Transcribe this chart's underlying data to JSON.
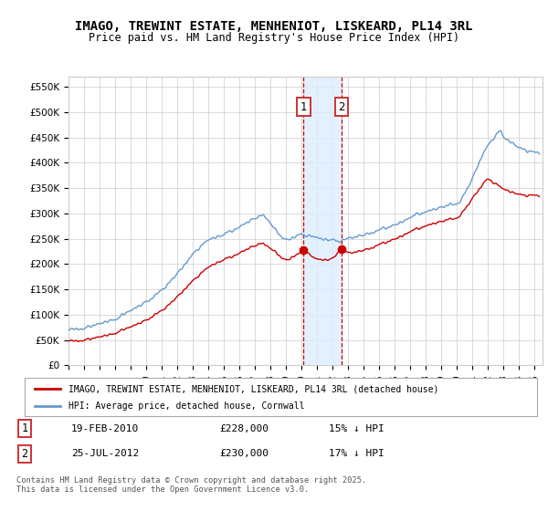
{
  "title": "IMAGO, TREWINT ESTATE, MENHENIOT, LISKEARD, PL14 3RL",
  "subtitle": "Price paid vs. HM Land Registry's House Price Index (HPI)",
  "legend_label_red": "IMAGO, TREWINT ESTATE, MENHENIOT, LISKEARD, PL14 3RL (detached house)",
  "legend_label_blue": "HPI: Average price, detached house, Cornwall",
  "annotation1_date": "19-FEB-2010",
  "annotation1_price": "£228,000",
  "annotation1_hpi": "15% ↓ HPI",
  "annotation2_date": "25-JUL-2012",
  "annotation2_price": "£230,000",
  "annotation2_hpi": "17% ↓ HPI",
  "footer": "Contains HM Land Registry data © Crown copyright and database right 2025.\nThis data is licensed under the Open Government Licence v3.0.",
  "red_color": "#cc0000",
  "blue_color": "#6699cc",
  "shading_color": "#ddeeff",
  "vline_color": "#cc0000",
  "grid_color": "#cccccc",
  "bg_color": "#ffffff",
  "ylim": [
    0,
    570000
  ],
  "yticks": [
    0,
    50000,
    100000,
    150000,
    200000,
    250000,
    300000,
    350000,
    400000,
    450000,
    500000,
    550000
  ],
  "sale1_year": 2010.13,
  "sale2_year": 2012.57,
  "sale1_price": 228000,
  "sale2_price": 230000
}
